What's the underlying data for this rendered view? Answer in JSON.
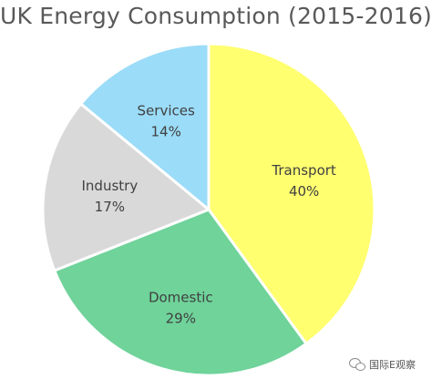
{
  "chart_data": {
    "type": "pie",
    "title": "UK Energy Consumption (2015-2016)",
    "slices": [
      {
        "label": "Transport",
        "value": 40,
        "value_label": "40%",
        "color": "#FFFF70"
      },
      {
        "label": "Domestic",
        "value": 29,
        "value_label": "29%",
        "color": "#6FD39A"
      },
      {
        "label": "Industry",
        "value": 17,
        "value_label": "17%",
        "color": "#D9D9D9"
      },
      {
        "label": "Services",
        "value": 14,
        "value_label": "14%",
        "color": "#9BDCF8"
      }
    ],
    "start": "12 o'clock",
    "direction": "clockwise",
    "slice_border_color": "#FFFFFF"
  },
  "watermark": {
    "text": "国际E观察",
    "icon": "chat-bubbles-icon"
  }
}
